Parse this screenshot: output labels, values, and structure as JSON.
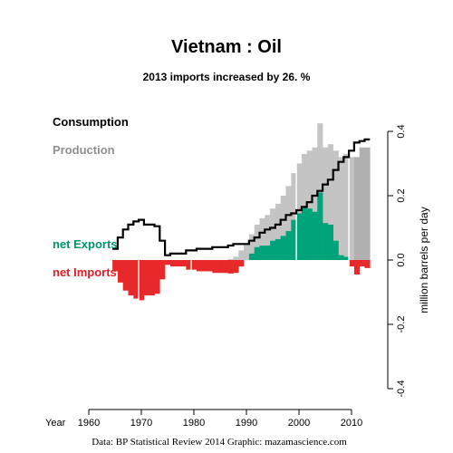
{
  "title": "Vietnam :  Oil",
  "subtitle": "2013 imports increased by 26. %",
  "credit": "Data: BP Statistical Review 2014    Graphic: mazamascience.com",
  "chart_data": {
    "type": "bar",
    "x_axis": {
      "label": "Year",
      "range": [
        1960,
        2013
      ],
      "ticks": [
        1960,
        1970,
        1980,
        1990,
        2000,
        2010
      ],
      "tick_labels": [
        "1960",
        "1970",
        "1980",
        "1990",
        "2000",
        "2010"
      ]
    },
    "y_axis": {
      "label": "million barrels per day",
      "range": [
        -0.4,
        0.4
      ],
      "ticks": [
        -0.4,
        -0.2,
        0.0,
        0.2,
        0.4
      ],
      "tick_labels": [
        "-0.4",
        "-0.2",
        "0.0",
        "0.2",
        "0.4"
      ],
      "side": "right"
    },
    "legend": {
      "consumption": "Consumption",
      "production": "Production",
      "net_exports": "net Exports",
      "net_imports": "net Imports"
    },
    "colors": {
      "production": "#c4c4c4",
      "production_recent": "#b0b0b0",
      "net_exports": "#00a37a",
      "net_imports": "#e8292b",
      "consumption": "#000000",
      "production_label": "#8f8f8f",
      "net_exports_label": "#00926b",
      "net_imports_label": "#e01f25"
    },
    "years": [
      1965,
      1966,
      1967,
      1968,
      1969,
      1970,
      1971,
      1972,
      1973,
      1974,
      1975,
      1976,
      1977,
      1978,
      1979,
      1980,
      1981,
      1982,
      1983,
      1984,
      1985,
      1986,
      1987,
      1988,
      1989,
      1990,
      1991,
      1992,
      1993,
      1994,
      1995,
      1996,
      1997,
      1998,
      1999,
      2000,
      2001,
      2002,
      2003,
      2004,
      2005,
      2006,
      2007,
      2008,
      2009,
      2010,
      2011,
      2012,
      2013
    ],
    "series": [
      {
        "name": "Consumption",
        "values": [
          0.035,
          0.07,
          0.095,
          0.11,
          0.12,
          0.125,
          0.11,
          0.11,
          0.105,
          0.06,
          0.015,
          0.02,
          0.02,
          0.02,
          0.03,
          0.03,
          0.035,
          0.035,
          0.035,
          0.04,
          0.04,
          0.04,
          0.045,
          0.05,
          0.05,
          0.05,
          0.06,
          0.07,
          0.085,
          0.095,
          0.1,
          0.11,
          0.125,
          0.14,
          0.145,
          0.155,
          0.165,
          0.18,
          0.2,
          0.215,
          0.235,
          0.25,
          0.28,
          0.305,
          0.32,
          0.34,
          0.365,
          0.37,
          0.375
        ]
      },
      {
        "name": "Production",
        "values": [
          0,
          0,
          0,
          0,
          0,
          0,
          0,
          0,
          0,
          0,
          0,
          0,
          0,
          0,
          0,
          0,
          0,
          0,
          0,
          0,
          0,
          0,
          0.003,
          0.01,
          0.03,
          0.05,
          0.08,
          0.11,
          0.13,
          0.14,
          0.16,
          0.175,
          0.2,
          0.23,
          0.27,
          0.3,
          0.33,
          0.34,
          0.35,
          0.425,
          0.35,
          0.36,
          0.34,
          0.32,
          0.33,
          0.32,
          0.32,
          0.35,
          0.35
        ]
      }
    ]
  }
}
